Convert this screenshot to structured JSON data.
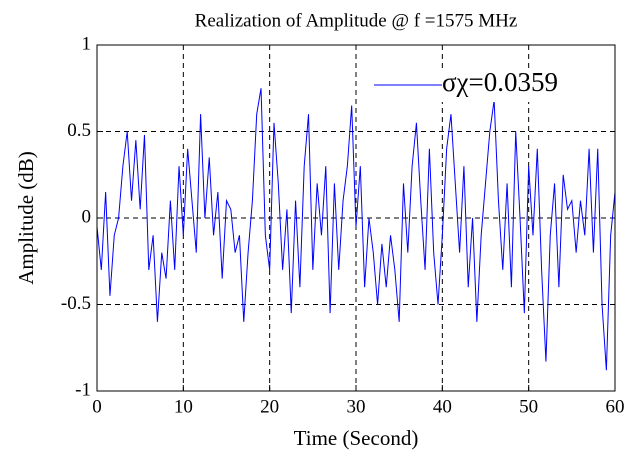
{
  "chart_data": {
    "type": "line",
    "title": "Realization of Amplitude @ f =1575 MHz",
    "x_label": "Time (Second)",
    "y_label": "Amplitude (dB)",
    "x": [
      0,
      0.5,
      1,
      1.5,
      2,
      2.5,
      3,
      3.5,
      4,
      4.5,
      5,
      5.5,
      6,
      6.5,
      7,
      7.5,
      8,
      8.5,
      9,
      9.5,
      10,
      10.5,
      11,
      11.5,
      12,
      12.5,
      13,
      13.5,
      14,
      14.5,
      15,
      15.5,
      16,
      16.5,
      17,
      17.5,
      18,
      18.5,
      19,
      19.5,
      20,
      20.5,
      21,
      21.5,
      22,
      22.5,
      23,
      23.5,
      24,
      24.5,
      25,
      25.5,
      26,
      26.5,
      27,
      27.5,
      28,
      28.5,
      29,
      29.5,
      30,
      30.5,
      31,
      31.5,
      32,
      32.5,
      33,
      33.5,
      34,
      34.5,
      35,
      35.5,
      36,
      36.5,
      37,
      37.5,
      38,
      38.5,
      39,
      39.5,
      40,
      40.5,
      41,
      41.5,
      42,
      42.5,
      43,
      43.5,
      44,
      44.5,
      45,
      45.5,
      46,
      46.5,
      47,
      47.5,
      48,
      48.5,
      49,
      49.5,
      50,
      50.5,
      51,
      51.5,
      52,
      52.5,
      53,
      53.5,
      54,
      54.5,
      55,
      55.5,
      56,
      56.5,
      57,
      57.5,
      58,
      58.5,
      59,
      59.5,
      60
    ],
    "series": [
      {
        "name": "σχ=0.0359",
        "color": "#0000ff",
        "values": [
          -0.05,
          -0.3,
          0.15,
          -0.45,
          -0.1,
          0.0,
          0.3,
          0.5,
          0.1,
          0.45,
          0.05,
          0.48,
          -0.3,
          -0.1,
          -0.6,
          -0.2,
          -0.35,
          0.1,
          -0.3,
          0.3,
          -0.1,
          0.4,
          0.1,
          -0.2,
          0.6,
          0.0,
          0.35,
          -0.1,
          0.15,
          -0.35,
          0.1,
          0.05,
          -0.2,
          -0.1,
          -0.6,
          -0.2,
          0.1,
          0.6,
          0.75,
          -0.1,
          -0.3,
          0.55,
          0.2,
          -0.3,
          0.05,
          -0.55,
          0.1,
          -0.4,
          0.3,
          0.6,
          -0.3,
          0.2,
          -0.1,
          0.3,
          -0.55,
          0.2,
          -0.3,
          0.1,
          0.3,
          0.65,
          -0.05,
          0.3,
          -0.4,
          0.0,
          -0.2,
          -0.5,
          -0.15,
          -0.4,
          -0.1,
          -0.3,
          -0.6,
          0.2,
          -0.2,
          0.3,
          0.55,
          0.1,
          -0.3,
          0.4,
          -0.2,
          -0.5,
          -0.1,
          0.4,
          0.6,
          0.2,
          -0.2,
          0.3,
          -0.4,
          0.0,
          -0.6,
          -0.1,
          0.2,
          0.5,
          0.68,
          0.1,
          -0.3,
          0.2,
          -0.4,
          0.5,
          0.0,
          -0.55,
          0.3,
          -0.1,
          0.4,
          -0.3,
          -0.83,
          -0.1,
          0.2,
          -0.4,
          0.25,
          0.05,
          0.1,
          -0.2,
          0.1,
          -0.1,
          0.4,
          -0.2,
          0.4,
          -0.5,
          -0.88,
          -0.1,
          0.15
        ]
      }
    ],
    "xlim": [
      0,
      60
    ],
    "ylim": [
      -1,
      1
    ],
    "xticks": [
      0,
      10,
      20,
      30,
      40,
      50,
      60
    ],
    "yticks": [
      -1,
      -0.5,
      0,
      0.5,
      1
    ],
    "grid": true,
    "legend": "upper right"
  }
}
